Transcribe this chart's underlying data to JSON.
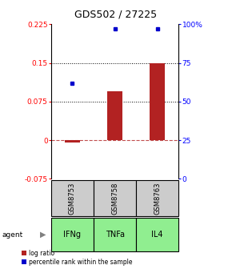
{
  "title": "GDS502 / 27225",
  "samples": [
    "GSM8753",
    "GSM8758",
    "GSM8763"
  ],
  "agents": [
    "IFNg",
    "TNFa",
    "IL4"
  ],
  "log_ratios": [
    -0.005,
    0.095,
    0.15
  ],
  "percentile_ranks": [
    62,
    97,
    97
  ],
  "ylim_left": [
    -0.075,
    0.225
  ],
  "ylim_right": [
    0,
    100
  ],
  "yticks_left": [
    -0.075,
    0,
    0.075,
    0.15,
    0.225
  ],
  "ytick_labels_left": [
    "-0.075",
    "0",
    "0.075",
    "0.15",
    "0.225"
  ],
  "yticks_right": [
    0,
    25,
    50,
    75,
    100
  ],
  "ytick_labels_right": [
    "0",
    "25",
    "50",
    "75",
    "100%"
  ],
  "hlines": [
    0.075,
    0.15
  ],
  "bar_color": "#b22222",
  "dot_color": "#0000cc",
  "sample_bg_color": "#cccccc",
  "agent_bg_color": "#90EE90",
  "bar_width": 0.35,
  "title_fontsize": 9,
  "tick_fontsize": 6.5,
  "label_fontsize": 7,
  "legend_fontsize": 5.5
}
